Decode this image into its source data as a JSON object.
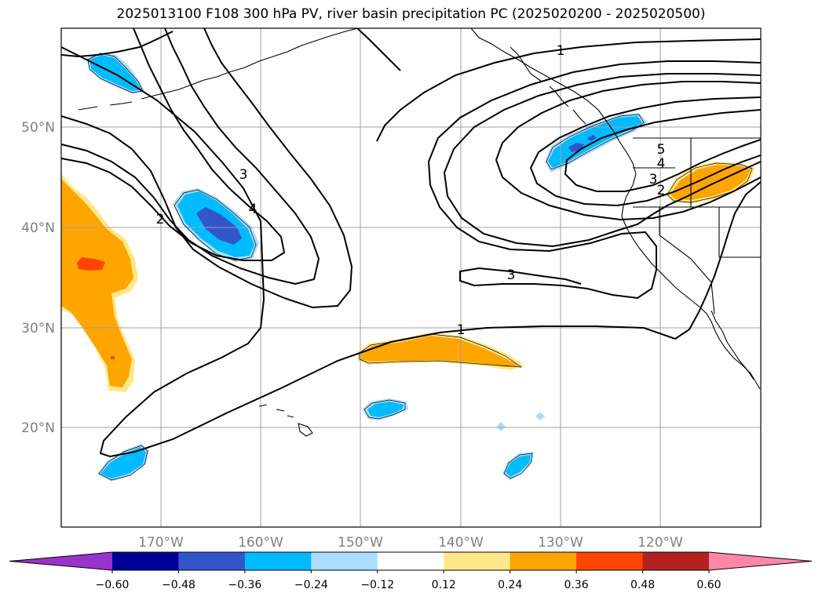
{
  "title": "2025013100 F108 300 hPa PV, river basin precipitation PC (2025020200 - 2025020500)",
  "map": {
    "lon_ticks": [
      "170°W",
      "160°W",
      "150°W",
      "140°W",
      "130°W",
      "120°W"
    ],
    "lat_ticks": [
      "50°N",
      "40°N",
      "30°N",
      "20°N"
    ],
    "contour_labels": {
      "one_north": "1",
      "one_south": "1",
      "two_west": "2",
      "three_west": "3",
      "four_west": "4",
      "three_center": "3",
      "five_east": "5",
      "four_east": "4",
      "three_east": "3",
      "two_east": "2"
    }
  },
  "colorbar": {
    "tick_labels": [
      "−0.60",
      "−0.48",
      "−0.36",
      "−0.24",
      "−0.12",
      "0.12",
      "0.24",
      "0.36",
      "0.48",
      "0.60"
    ],
    "colors": [
      "#9933cc",
      "#000099",
      "#3355cc",
      "#00bbff",
      "#aaddff",
      "#ffffff",
      "#ffe88a",
      "#ffa500",
      "#ff4400",
      "#b22222",
      "#ff88aa"
    ]
  }
}
